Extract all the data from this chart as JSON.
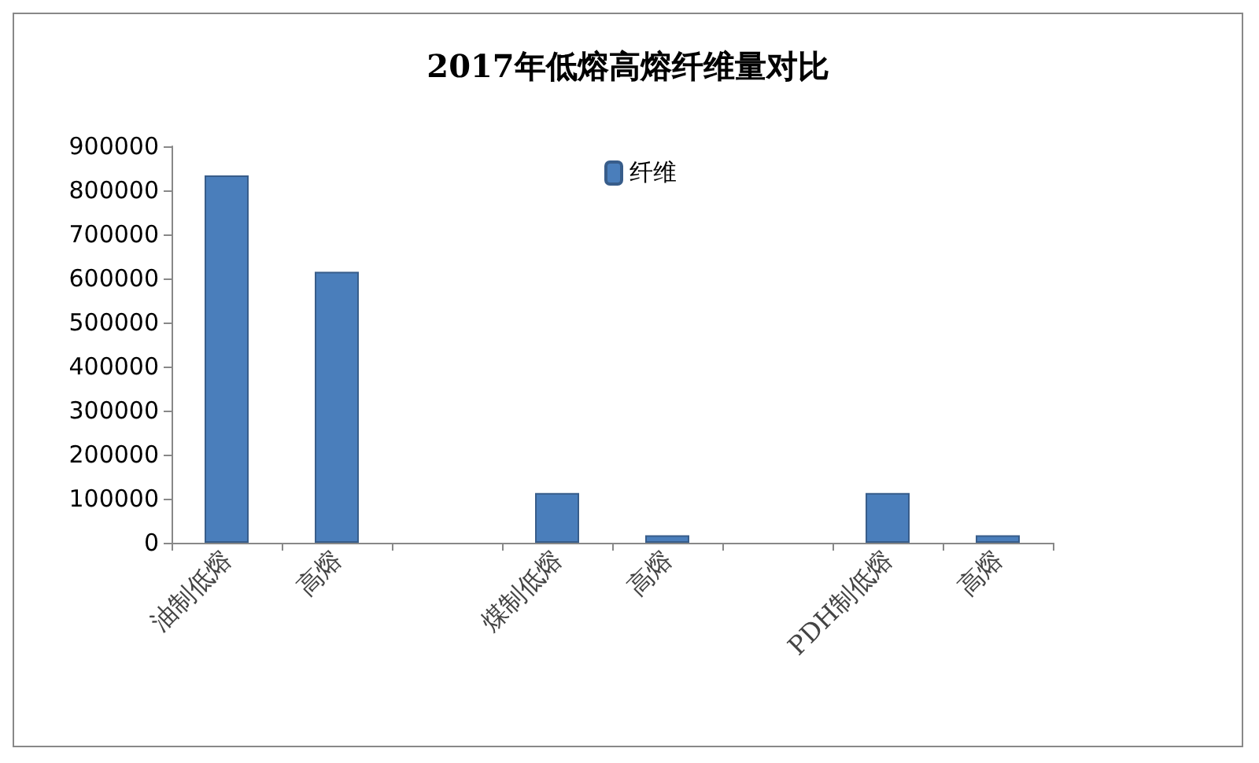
{
  "chart_data": {
    "type": "bar",
    "title": "2017年低熔高熔纤维量对比",
    "categories": [
      "油制低熔",
      "高熔",
      null,
      "煤制低熔",
      "高熔",
      null,
      "PDH制低熔",
      "高熔"
    ],
    "series": [
      {
        "name": "纤维",
        "color": "#4a7ebb",
        "values": [
          834000,
          615000,
          null,
          113000,
          17000,
          null,
          113000,
          17000
        ]
      }
    ],
    "ylim": [
      0,
      900000
    ],
    "yticks": [
      0,
      100000,
      200000,
      300000,
      400000,
      500000,
      600000,
      700000,
      800000,
      900000
    ],
    "grid": false,
    "legend": "top"
  }
}
